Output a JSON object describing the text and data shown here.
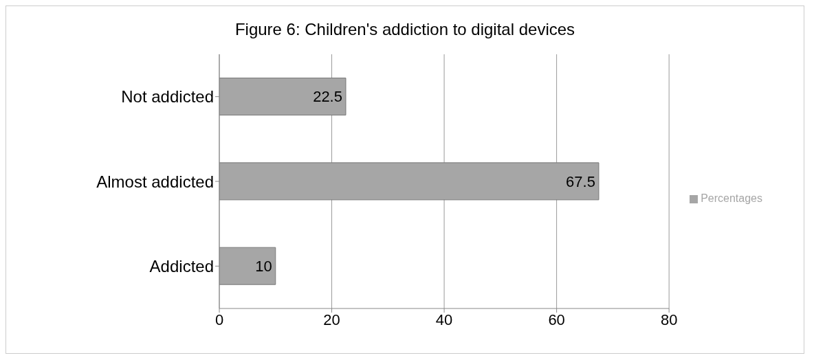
{
  "chart_data": {
    "type": "bar",
    "title": "Figure 6: Children's addiction to digital devices",
    "orientation": "horizontal",
    "categories": [
      "Not addicted",
      "Almost addicted",
      "Addicted"
    ],
    "series": [
      {
        "name": "Percentages",
        "color": "#a6a6a6",
        "values": [
          22.5,
          67.5,
          10
        ]
      }
    ],
    "xlim": [
      0,
      80
    ],
    "xticks": [
      0,
      20,
      40,
      60,
      80
    ],
    "grid": "x",
    "legend": "right",
    "data_labels": true
  }
}
